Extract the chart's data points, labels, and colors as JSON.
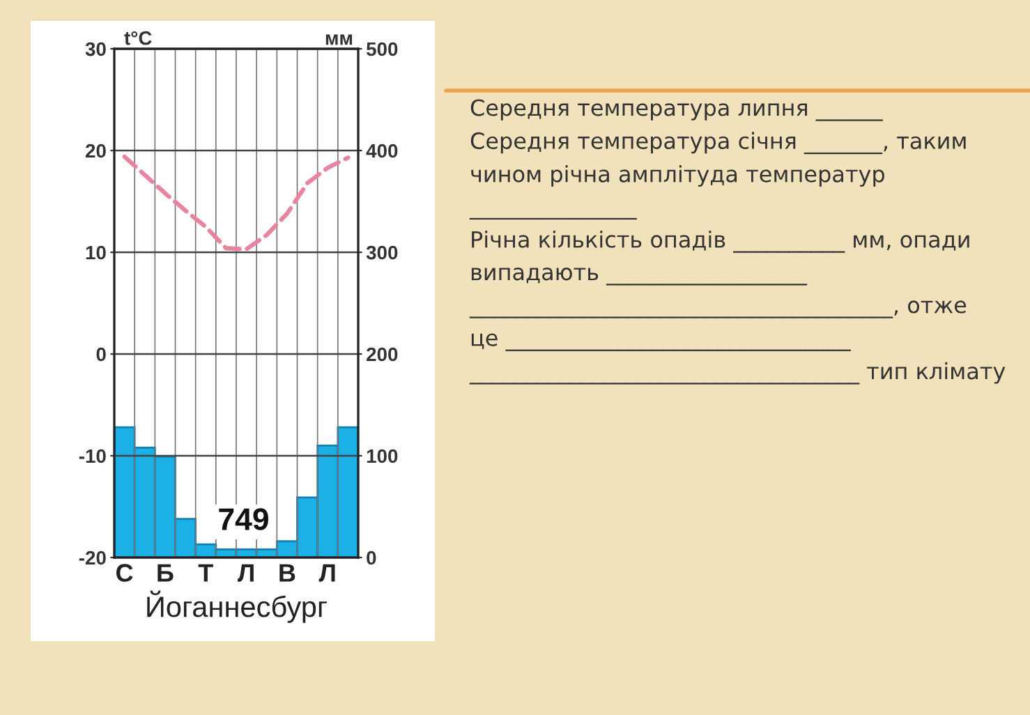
{
  "chart_data": {
    "type": "bar",
    "xlabel": "Йоганнесбург",
    "ylabel": "t°C",
    "y2label": "мм",
    "categories": [
      "С",
      null,
      "Б",
      null,
      "Т",
      null,
      "Л",
      null,
      "В",
      null,
      "Л",
      null
    ],
    "series": [
      {
        "axis": "y2",
        "color": "#1cb1e6",
        "values": [
          128,
          108,
          99,
          38,
          13,
          8,
          8,
          8,
          16,
          59,
          110,
          128
        ]
      },
      {
        "type": "line",
        "color": "#e8849e",
        "values": [
          19.4,
          17.6,
          15.8,
          14.1,
          12.5,
          10.4,
          10.3,
          11.7,
          13.8,
          16.8,
          18.3,
          19.3
        ]
      }
    ],
    "ylim": [
      -20,
      30
    ],
    "yticks": [
      -20,
      -10,
      0,
      10,
      20,
      30
    ],
    "y2lim": [
      0,
      500
    ],
    "y2ticks": [
      0,
      100,
      200,
      300,
      400,
      500
    ],
    "grid": true,
    "line_style": "dashed",
    "annotations": [
      "749",
      "Середня температура липня ______",
      "Середня температура січня _______, таким",
      "чином річна амплітуда температур",
      "_______________",
      "Річна кількість опадів __________ мм, опади",
      "випадають __________________",
      "______________________________________, отже",
      "це _______________________________",
      "___________________________________ тип клімату"
    ]
  }
}
